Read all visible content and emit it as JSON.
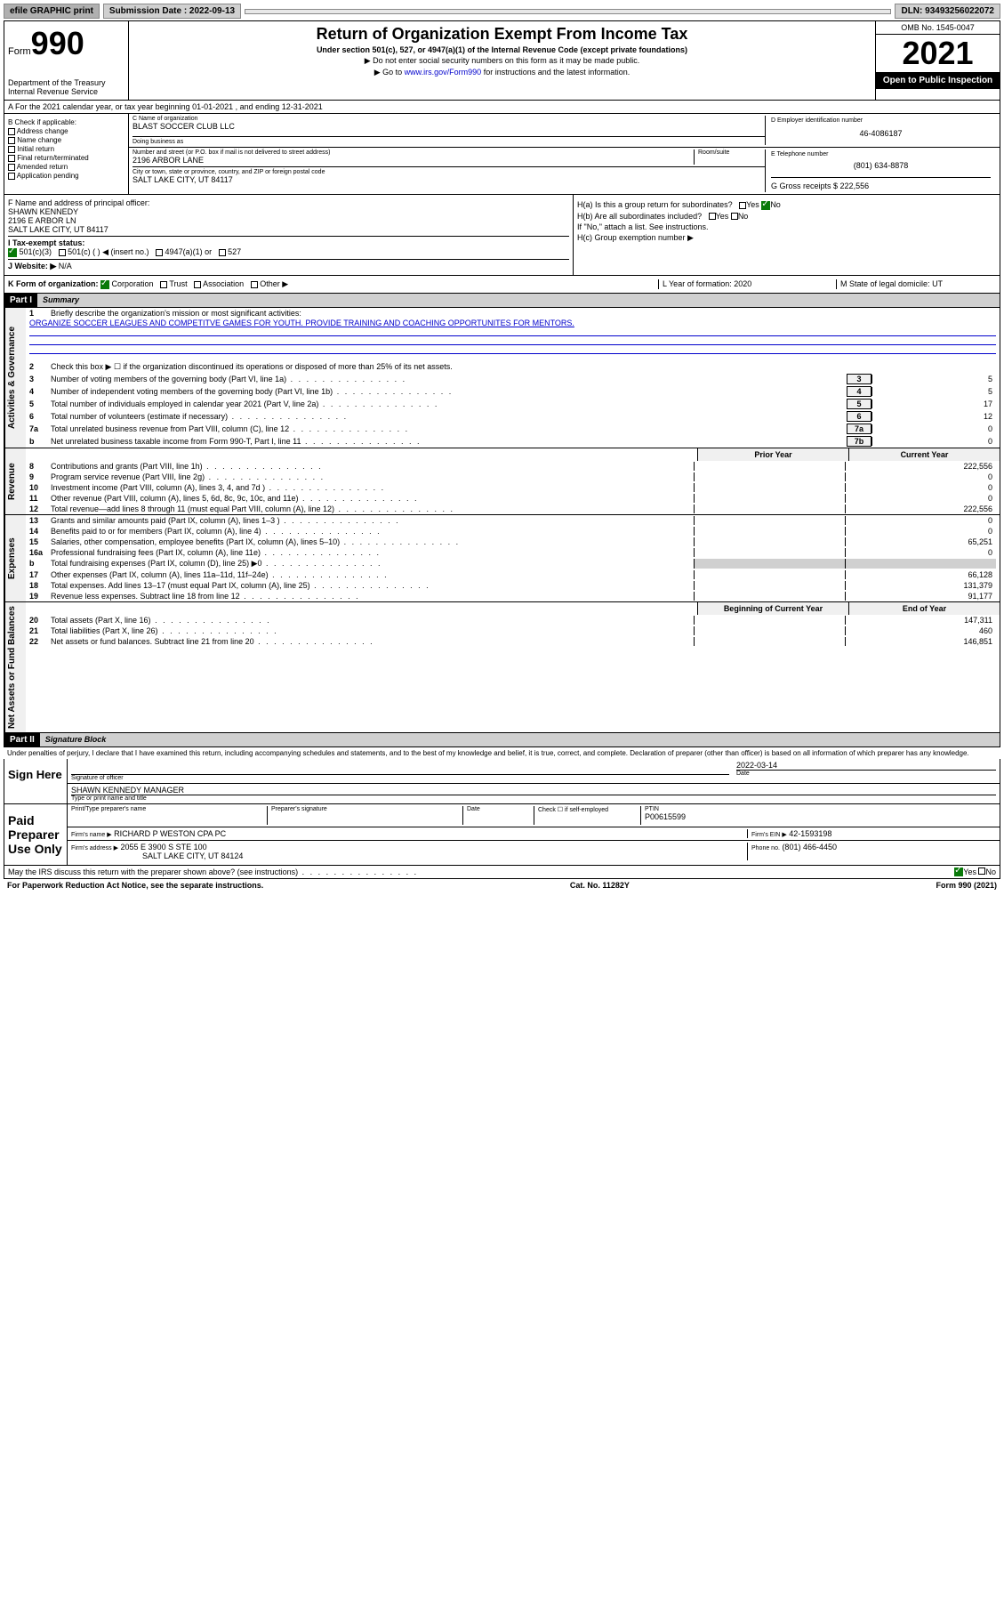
{
  "topbar": {
    "efile": "efile GRAPHIC print",
    "submission": "Submission Date : 2022-09-13",
    "dln": "DLN: 93493256022072"
  },
  "header": {
    "form_label": "Form",
    "form_num": "990",
    "title": "Return of Organization Exempt From Income Tax",
    "subtitle": "Under section 501(c), 527, or 4947(a)(1) of the Internal Revenue Code (except private foundations)",
    "note1": "▶ Do not enter social security numbers on this form as it may be made public.",
    "note2_pre": "▶ Go to ",
    "note2_link": "www.irs.gov/Form990",
    "note2_post": " for instructions and the latest information.",
    "dept": "Department of the Treasury Internal Revenue Service",
    "omb": "OMB No. 1545-0047",
    "year": "2021",
    "open": "Open to Public Inspection"
  },
  "row_a": "A For the 2021 calendar year, or tax year beginning 01-01-2021   , and ending 12-31-2021",
  "col_b": {
    "label": "B Check if applicable:",
    "items": [
      "Address change",
      "Name change",
      "Initial return",
      "Final return/terminated",
      "Amended return",
      "Application pending"
    ]
  },
  "col_c": {
    "name_label": "C Name of organization",
    "name": "BLAST SOCCER CLUB LLC",
    "dba_label": "Doing business as",
    "addr_label": "Number and street (or P.O. box if mail is not delivered to street address)",
    "room_label": "Room/suite",
    "addr": "2196 ARBOR LANE",
    "city_label": "City or town, state or province, country, and ZIP or foreign postal code",
    "city": "SALT LAKE CITY, UT  84117"
  },
  "col_d": {
    "label": "D Employer identification number",
    "ein": "46-4086187"
  },
  "col_e": {
    "label": "E Telephone number",
    "phone": "(801) 634-8878"
  },
  "col_g": {
    "label": "G Gross receipts $",
    "amount": "222,556"
  },
  "section_f": {
    "label": "F  Name and address of principal officer:",
    "name": "SHAWN KENNEDY",
    "addr": "2196 E ARBOR LN",
    "city": "SALT LAKE CITY, UT  84117"
  },
  "section_h": {
    "ha": "H(a)  Is this a group return for subordinates?",
    "hb": "H(b)  Are all subordinates included?",
    "hb_note": "If \"No,\" attach a list. See instructions.",
    "hc": "H(c)  Group exemption number ▶",
    "yes": "Yes",
    "no": "No"
  },
  "section_i": {
    "label": "I  Tax-exempt status:",
    "opt1": "501(c)(3)",
    "opt2": "501(c) (   ) ◀ (insert no.)",
    "opt3": "4947(a)(1) or",
    "opt4": "527"
  },
  "section_j": {
    "label": "J  Website: ▶",
    "val": "N/A"
  },
  "row_k": {
    "label": "K Form of organization:",
    "corp": "Corporation",
    "trust": "Trust",
    "assoc": "Association",
    "other": "Other ▶",
    "l_label": "L Year of formation:",
    "l_val": "2020",
    "m_label": "M State of legal domicile:",
    "m_val": "UT"
  },
  "part1": {
    "header": "Part I",
    "title": "Summary",
    "line1": "Briefly describe the organization's mission or most significant activities:",
    "mission": "ORGANIZE SOCCER LEAGUES AND COMPETITVE GAMES FOR YOUTH. PROVIDE TRAINING AND COACHING OPPORTUNITES FOR MENTORS.",
    "line2": "Check this box ▶ ☐  if the organization discontinued its operations or disposed of more than 25% of its net assets.",
    "lines": [
      {
        "n": "3",
        "t": "Number of voting members of the governing body (Part VI, line 1a)",
        "box": "3",
        "v": "5"
      },
      {
        "n": "4",
        "t": "Number of independent voting members of the governing body (Part VI, line 1b)",
        "box": "4",
        "v": "5"
      },
      {
        "n": "5",
        "t": "Total number of individuals employed in calendar year 2021 (Part V, line 2a)",
        "box": "5",
        "v": "17"
      },
      {
        "n": "6",
        "t": "Total number of volunteers (estimate if necessary)",
        "box": "6",
        "v": "12"
      },
      {
        "n": "7a",
        "t": "Total unrelated business revenue from Part VIII, column (C), line 12",
        "box": "7a",
        "v": "0"
      },
      {
        "n": "b",
        "t": "Net unrelated business taxable income from Form 990-T, Part I, line 11",
        "box": "7b",
        "v": "0"
      }
    ],
    "prior": "Prior Year",
    "current": "Current Year",
    "revenue": [
      {
        "n": "8",
        "t": "Contributions and grants (Part VIII, line 1h)",
        "p": "",
        "c": "222,556"
      },
      {
        "n": "9",
        "t": "Program service revenue (Part VIII, line 2g)",
        "p": "",
        "c": "0"
      },
      {
        "n": "10",
        "t": "Investment income (Part VIII, column (A), lines 3, 4, and 7d )",
        "p": "",
        "c": "0"
      },
      {
        "n": "11",
        "t": "Other revenue (Part VIII, column (A), lines 5, 6d, 8c, 9c, 10c, and 11e)",
        "p": "",
        "c": "0"
      },
      {
        "n": "12",
        "t": "Total revenue—add lines 8 through 11 (must equal Part VIII, column (A), line 12)",
        "p": "",
        "c": "222,556"
      }
    ],
    "expenses": [
      {
        "n": "13",
        "t": "Grants and similar amounts paid (Part IX, column (A), lines 1–3 )",
        "p": "",
        "c": "0"
      },
      {
        "n": "14",
        "t": "Benefits paid to or for members (Part IX, column (A), line 4)",
        "p": "",
        "c": "0"
      },
      {
        "n": "15",
        "t": "Salaries, other compensation, employee benefits (Part IX, column (A), lines 5–10)",
        "p": "",
        "c": "65,251"
      },
      {
        "n": "16a",
        "t": "Professional fundraising fees (Part IX, column (A), line 11e)",
        "p": "",
        "c": "0"
      },
      {
        "n": "b",
        "t": "Total fundraising expenses (Part IX, column (D), line 25) ▶0",
        "p": "—",
        "c": "—"
      },
      {
        "n": "17",
        "t": "Other expenses (Part IX, column (A), lines 11a–11d, 11f–24e)",
        "p": "",
        "c": "66,128"
      },
      {
        "n": "18",
        "t": "Total expenses. Add lines 13–17 (must equal Part IX, column (A), line 25)",
        "p": "",
        "c": "131,379"
      },
      {
        "n": "19",
        "t": "Revenue less expenses. Subtract line 18 from line 12",
        "p": "",
        "c": "91,177"
      }
    ],
    "begin": "Beginning of Current Year",
    "end": "End of Year",
    "netassets": [
      {
        "n": "20",
        "t": "Total assets (Part X, line 16)",
        "p": "",
        "c": "147,311"
      },
      {
        "n": "21",
        "t": "Total liabilities (Part X, line 26)",
        "p": "",
        "c": "460"
      },
      {
        "n": "22",
        "t": "Net assets or fund balances. Subtract line 21 from line 20",
        "p": "",
        "c": "146,851"
      }
    ],
    "vtab_gov": "Activities & Governance",
    "vtab_rev": "Revenue",
    "vtab_exp": "Expenses",
    "vtab_net": "Net Assets or Fund Balances"
  },
  "part2": {
    "header": "Part II",
    "title": "Signature Block",
    "penalty": "Under penalties of perjury, I declare that I have examined this return, including accompanying schedules and statements, and to the best of my knowledge and belief, it is true, correct, and complete. Declaration of preparer (other than officer) is based on all information of which preparer has any knowledge.",
    "sign_here": "Sign Here",
    "sig_officer": "Signature of officer",
    "date": "Date",
    "sig_date": "2022-03-14",
    "officer_name": "SHAWN KENNEDY MANAGER",
    "type_name": "Type or print name and title",
    "paid": "Paid Preparer Use Only",
    "prep_name_label": "Print/Type preparer's name",
    "prep_sig_label": "Preparer's signature",
    "date_label": "Date",
    "check_self": "Check ☐ if self-employed",
    "ptin_label": "PTIN",
    "ptin": "P00615599",
    "firm_name_label": "Firm's name    ▶",
    "firm_name": "RICHARD P WESTON CPA PC",
    "firm_ein_label": "Firm's EIN ▶",
    "firm_ein": "42-1593198",
    "firm_addr_label": "Firm's address ▶",
    "firm_addr": "2055 E 3900 S STE 100",
    "firm_city": "SALT LAKE CITY, UT  84124",
    "phone_label": "Phone no.",
    "phone": "(801) 466-4450",
    "may_irs": "May the IRS discuss this return with the preparer shown above? (see instructions)",
    "yes": "Yes",
    "no": "No"
  },
  "footer": {
    "paperwork": "For Paperwork Reduction Act Notice, see the separate instructions.",
    "cat": "Cat. No. 11282Y",
    "form": "Form 990 (2021)"
  }
}
